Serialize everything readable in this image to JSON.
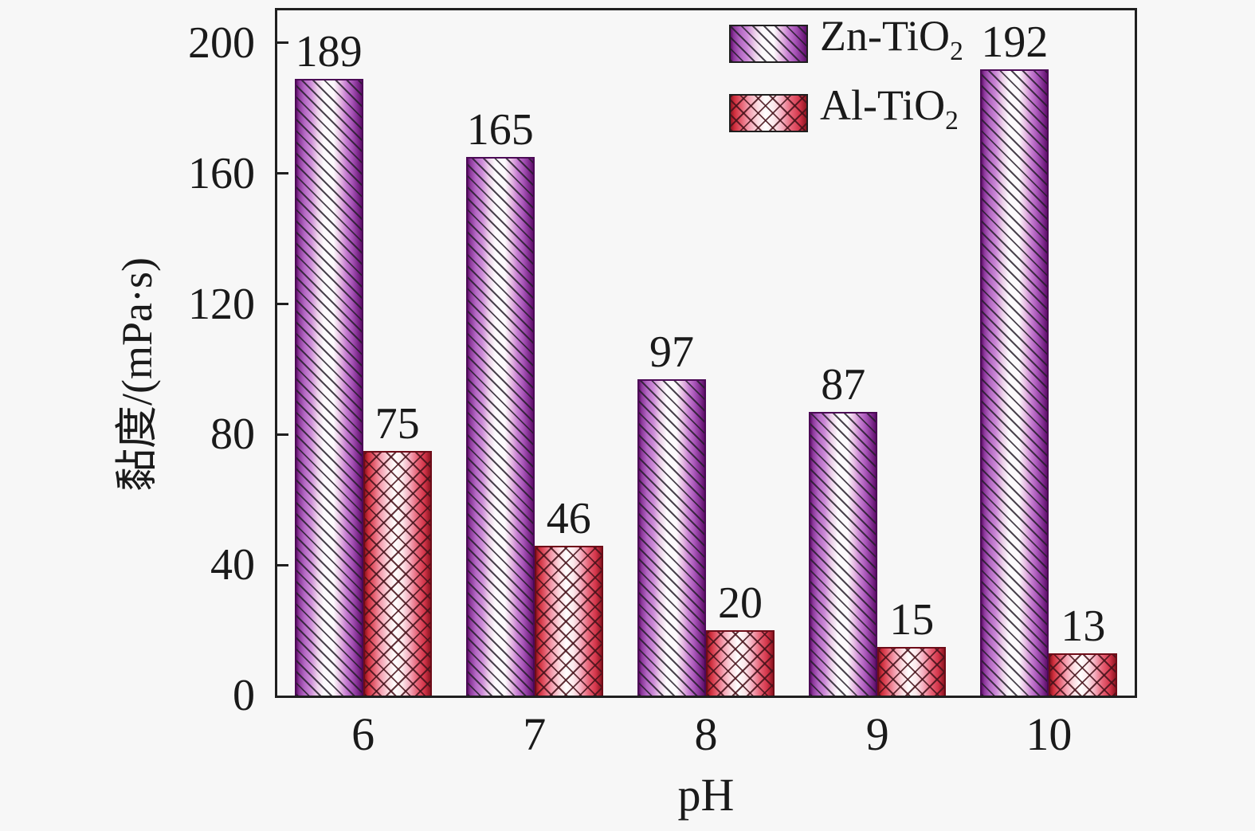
{
  "figure": {
    "background_color": "#f7f7f7",
    "frame_color": "#1f1f1f",
    "text_color": "#1a1a1a"
  },
  "chart_data": {
    "type": "bar",
    "title": "",
    "xlabel": "pH",
    "ylabel": "黏度/(mPa·s)",
    "categories": [
      "6",
      "7",
      "8",
      "9",
      "10"
    ],
    "series": [
      {
        "name": "Zn-TiO₂",
        "values": [
          189,
          165,
          97,
          87,
          192
        ],
        "color_main": "#a855b8",
        "color_edge": "#5f0f6a",
        "hatch": "diagonal"
      },
      {
        "name": "Al-TiO₂",
        "values": [
          75,
          46,
          20,
          15,
          13
        ],
        "color_main": "#d4354a",
        "color_edge": "#8e1622",
        "hatch": "crosshatch"
      }
    ],
    "ylim": [
      0,
      210
    ],
    "yticks": [
      0,
      40,
      80,
      120,
      160,
      200
    ],
    "grid": false,
    "legend_position": "upper-center-right",
    "value_labels": true
  },
  "legend": {
    "items": [
      {
        "base": "Zn-TiO",
        "sub": "2"
      },
      {
        "base": "Al-TiO",
        "sub": "2"
      }
    ]
  }
}
